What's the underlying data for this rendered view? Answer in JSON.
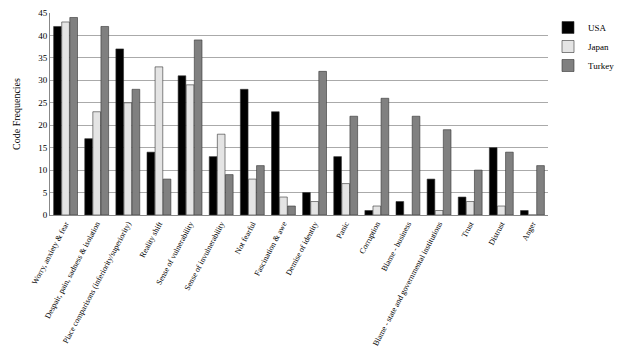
{
  "chart_data": {
    "type": "bar",
    "categories": [
      "Worry, anxiety & fear",
      "Despair, pain, sadness & isolation",
      "Place comparisons (inferiority/superiority)",
      "Reality shift",
      "Sense of vulnerability",
      "Sense of invulnerability",
      "Not fearful",
      "Fascination & awe",
      "Demise of identity",
      "Panic",
      "Corruption",
      "Blame - business",
      "Blame - state and governmental institutions",
      "Trust",
      "Distrust",
      "Anger"
    ],
    "series": [
      {
        "name": "USA",
        "color": "#000000",
        "values": [
          42,
          17,
          37,
          14,
          31,
          13,
          28,
          23,
          5,
          13,
          1,
          3,
          8,
          4,
          15,
          1
        ]
      },
      {
        "name": "Japan",
        "color": "#e4e4e4",
        "values": [
          43,
          23,
          25,
          33,
          29,
          18,
          8,
          4,
          3,
          7,
          2,
          0,
          1,
          3,
          2,
          0
        ]
      },
      {
        "name": "Turkey",
        "color": "#808080",
        "values": [
          44,
          42,
          28,
          8,
          39,
          9,
          11,
          2,
          32,
          22,
          26,
          22,
          19,
          10,
          14,
          11
        ]
      }
    ],
    "y_label": "Code Frequencies",
    "ylim": [
      0,
      45
    ],
    "yticks": [
      0,
      5,
      10,
      15,
      20,
      25,
      30,
      35,
      40,
      45
    ],
    "grid": true,
    "legend": "top right"
  }
}
